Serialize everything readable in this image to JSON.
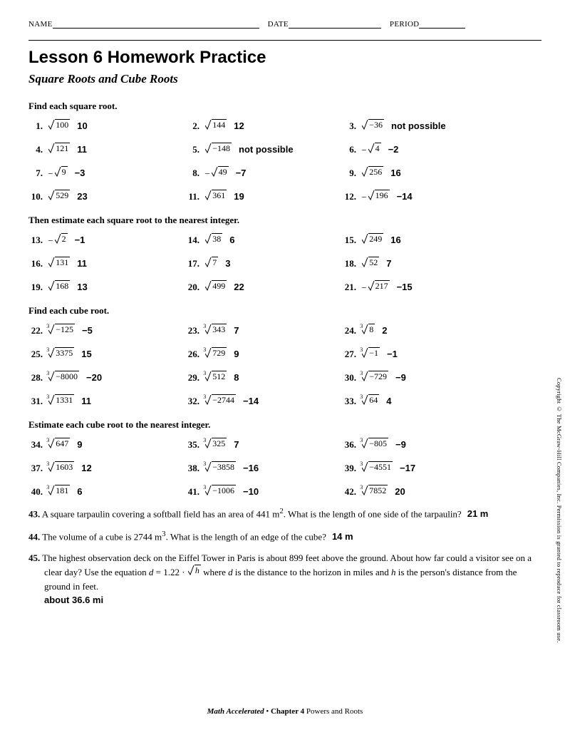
{
  "header": {
    "name": "NAME",
    "date": "DATE",
    "period": "PERIOD"
  },
  "title": "Lesson 6 Homework Practice",
  "subtitle": "Square Roots and Cube Roots",
  "sections": [
    {
      "head": "Find each square root.",
      "items": [
        {
          "n": "1.",
          "neg": false,
          "idx": "",
          "rad": "100",
          "ans": "10"
        },
        {
          "n": "2.",
          "neg": false,
          "idx": "",
          "rad": "144",
          "ans": "12"
        },
        {
          "n": "3.",
          "neg": false,
          "idx": "",
          "rad": "−36",
          "ans": "not possible"
        },
        {
          "n": "4.",
          "neg": false,
          "idx": "",
          "rad": "121",
          "ans": "11"
        },
        {
          "n": "5.",
          "neg": false,
          "idx": "",
          "rad": "−148",
          "ans": "not possible"
        },
        {
          "n": "6.",
          "neg": true,
          "idx": "",
          "rad": "4",
          "ans": "−2"
        },
        {
          "n": "7.",
          "neg": true,
          "idx": "",
          "rad": "9",
          "ans": "−3"
        },
        {
          "n": "8.",
          "neg": true,
          "idx": "",
          "rad": "49",
          "ans": "−7"
        },
        {
          "n": "9.",
          "neg": false,
          "idx": "",
          "rad": "256",
          "ans": "16"
        },
        {
          "n": "10.",
          "neg": false,
          "idx": "",
          "rad": "529",
          "ans": "23"
        },
        {
          "n": "11.",
          "neg": false,
          "idx": "",
          "rad": "361",
          "ans": "19"
        },
        {
          "n": "12.",
          "neg": true,
          "idx": "",
          "rad": "196",
          "ans": "−14"
        }
      ]
    },
    {
      "head": "Then estimate each square root to the nearest integer.",
      "items": [
        {
          "n": "13.",
          "neg": true,
          "idx": "",
          "rad": "2",
          "ans": "−1"
        },
        {
          "n": "14.",
          "neg": false,
          "idx": "",
          "rad": "38",
          "ans": "6"
        },
        {
          "n": "15.",
          "neg": false,
          "idx": "",
          "rad": "249",
          "ans": "16"
        },
        {
          "n": "16.",
          "neg": false,
          "idx": "",
          "rad": "131",
          "ans": "11"
        },
        {
          "n": "17.",
          "neg": false,
          "idx": "",
          "rad": "7",
          "ans": "3"
        },
        {
          "n": "18.",
          "neg": false,
          "idx": "",
          "rad": "52",
          "ans": "7"
        },
        {
          "n": "19.",
          "neg": false,
          "idx": "",
          "rad": "168",
          "ans": "13"
        },
        {
          "n": "20.",
          "neg": false,
          "idx": "",
          "rad": "499",
          "ans": "22"
        },
        {
          "n": "21.",
          "neg": true,
          "idx": "",
          "rad": "217",
          "ans": "−15"
        }
      ]
    },
    {
      "head": "Find each cube root.",
      "items": [
        {
          "n": "22.",
          "neg": false,
          "idx": "3",
          "rad": "−125",
          "ans": "−5"
        },
        {
          "n": "23.",
          "neg": false,
          "idx": "3",
          "rad": "343",
          "ans": "7"
        },
        {
          "n": "24.",
          "neg": false,
          "idx": "3",
          "rad": "8",
          "ans": "2"
        },
        {
          "n": "25.",
          "neg": false,
          "idx": "3",
          "rad": "3375",
          "ans": "15"
        },
        {
          "n": "26.",
          "neg": false,
          "idx": "3",
          "rad": "729",
          "ans": "9"
        },
        {
          "n": "27.",
          "neg": false,
          "idx": "3",
          "rad": "−1",
          "ans": "−1"
        },
        {
          "n": "28.",
          "neg": false,
          "idx": "3",
          "rad": "−8000",
          "ans": "−20"
        },
        {
          "n": "29.",
          "neg": false,
          "idx": "3",
          "rad": "512",
          "ans": "8"
        },
        {
          "n": "30.",
          "neg": false,
          "idx": "3",
          "rad": "−729",
          "ans": "−9"
        },
        {
          "n": "31.",
          "neg": false,
          "idx": "3",
          "rad": "1331",
          "ans": "11"
        },
        {
          "n": "32.",
          "neg": false,
          "idx": "3",
          "rad": "−2744",
          "ans": "−14"
        },
        {
          "n": "33.",
          "neg": false,
          "idx": "3",
          "rad": "64",
          "ans": "4"
        }
      ]
    },
    {
      "head": "Estimate each cube root to the nearest integer.",
      "items": [
        {
          "n": "34.",
          "neg": false,
          "idx": "3",
          "rad": "647",
          "ans": "9"
        },
        {
          "n": "35.",
          "neg": false,
          "idx": "3",
          "rad": "325",
          "ans": "7"
        },
        {
          "n": "36.",
          "neg": false,
          "idx": "3",
          "rad": "−805",
          "ans": "−9"
        },
        {
          "n": "37.",
          "neg": false,
          "idx": "3",
          "rad": "1603",
          "ans": "12"
        },
        {
          "n": "38.",
          "neg": false,
          "idx": "3",
          "rad": "−3858",
          "ans": "−16"
        },
        {
          "n": "39.",
          "neg": false,
          "idx": "3",
          "rad": "−4551",
          "ans": "−17"
        },
        {
          "n": "40.",
          "neg": false,
          "idx": "3",
          "rad": "181",
          "ans": "6"
        },
        {
          "n": "41.",
          "neg": false,
          "idx": "3",
          "rad": "−1006",
          "ans": "−10"
        },
        {
          "n": "42.",
          "neg": false,
          "idx": "3",
          "rad": "7852",
          "ans": "20"
        }
      ]
    }
  ],
  "word": [
    {
      "n": "43.",
      "text_a": "A square tarpaulin covering a softball field has an area of 441 m",
      "sup": "2",
      "text_b": ". What is the length of one side of the tarpaulin?",
      "ans": "21 m"
    },
    {
      "n": "44.",
      "text_a": "The volume of a cube is 2744 m",
      "sup": "3",
      "text_b": ". What is the length of an edge of the cube?",
      "ans": "14 m"
    }
  ],
  "word45": {
    "n": "45.",
    "t1": "The highest observation deck on the Eiffel Tower in Paris is about 899 feet above the ground. About how far could a visitor see on a clear day? Use the equation ",
    "eq_d": "d",
    "eq_eq": " = 1.22 · ",
    "eq_rad": "h",
    "t2": " where ",
    "eq_d2": "d",
    "t3": " is the distance to the horizon in miles and ",
    "eq_h": "h",
    "t4": " is the person's distance from the ground in feet.",
    "ans": "about 36.6 mi"
  },
  "footer": {
    "book": "Math Accelerated",
    "sep": " • ",
    "chapter": "Chapter 4",
    "topic": " Powers and Roots"
  },
  "copyright": "Copyright © The McGraw-Hill Companies, Inc. Permission is granted to reproduce for classroom use."
}
